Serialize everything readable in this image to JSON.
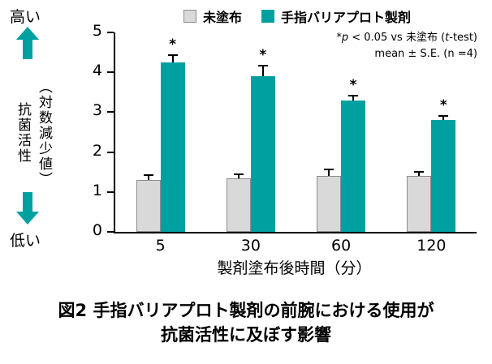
{
  "axis_left": {
    "high": "高い",
    "low": "低い"
  },
  "y_axis": {
    "label_main": "抗菌活性",
    "label_sub": "（対数減少値）"
  },
  "x_axis": {
    "label": "製剤塗布後時間（分）"
  },
  "annotation": {
    "sig": "*",
    "p": "p",
    "p_rest": " < 0.05 vs 未塗布 (",
    "t": "t",
    "t_rest": "-test)",
    "line2": "mean ± S.E. (n =4)"
  },
  "caption": {
    "line1": "図2 手指バリアプロト製剤の前腕における使用が",
    "line2": "抗菌活性に及ぼす影響"
  },
  "colors": {
    "arrow": "#00a0a0",
    "axis": "#000000"
  },
  "chart_data": {
    "type": "bar",
    "title": "",
    "categories": [
      "5",
      "30",
      "60",
      "120"
    ],
    "series": [
      {
        "name": "未塗布",
        "color": "#d9d9d9",
        "border": "#8c8c8c",
        "values": [
          1.3,
          1.35,
          1.4,
          1.4
        ],
        "errors": [
          0.15,
          0.12,
          0.18,
          0.12
        ],
        "sig": [
          false,
          false,
          false,
          false
        ]
      },
      {
        "name": "手指バリアプロト製剤",
        "color": "#00a0a0",
        "border": "#00a0a0",
        "values": [
          4.25,
          3.9,
          3.3,
          2.8
        ],
        "errors": [
          0.2,
          0.28,
          0.15,
          0.12
        ],
        "sig": [
          true,
          true,
          true,
          true
        ]
      }
    ],
    "xlabel": "製剤塗布後時間（分）",
    "ylabel": "抗菌活性（対数減少値）",
    "ylim": [
      0,
      5
    ],
    "yticks": [
      0,
      1,
      2,
      3,
      4,
      5
    ],
    "grid": false,
    "legend_position": "top",
    "sig_marker": "*"
  }
}
